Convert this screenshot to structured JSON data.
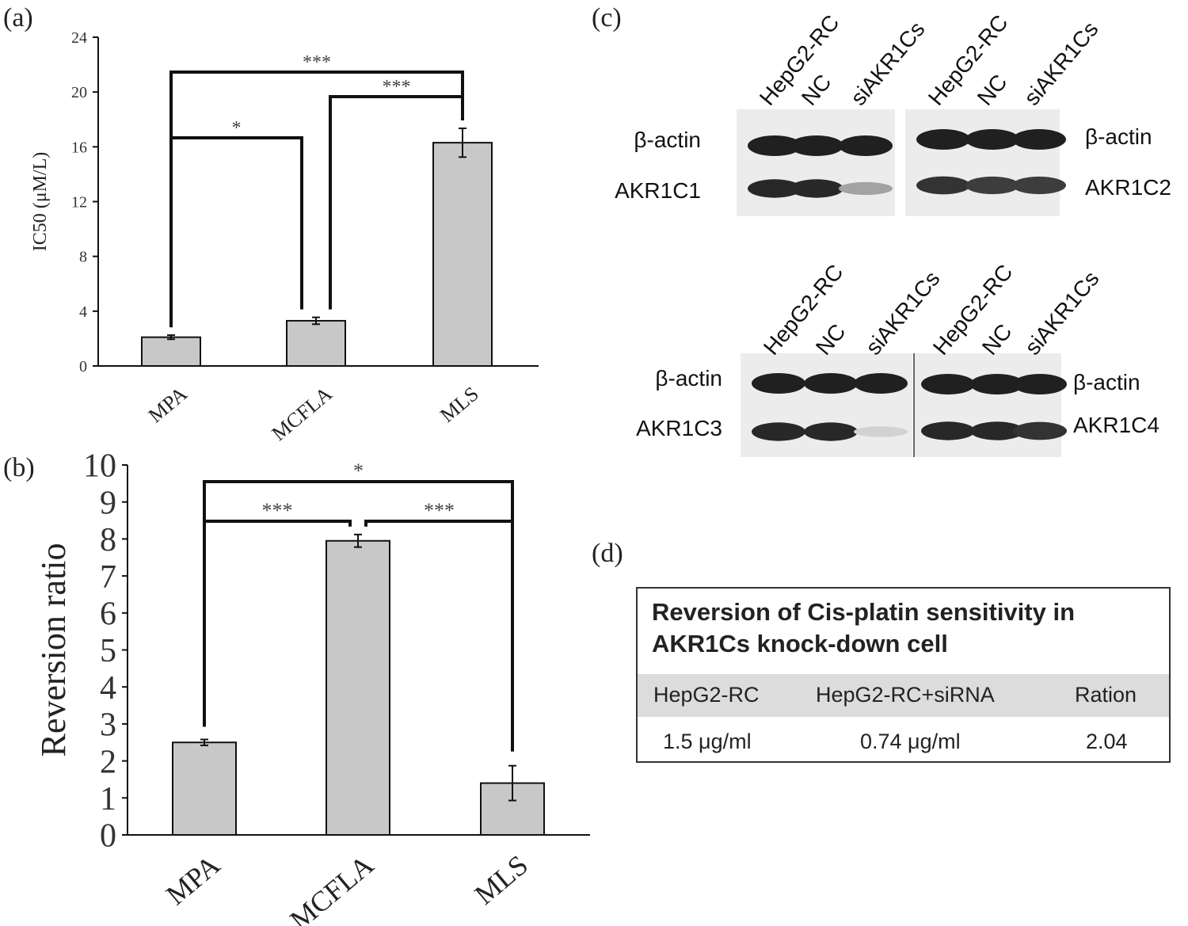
{
  "panel_labels": {
    "a": "(a)",
    "b": "(b)",
    "c": "(c)",
    "d": "(d)"
  },
  "chart_data": [
    {
      "type": "bar",
      "panel": "(a)",
      "categories": [
        "MPA",
        "MCFLA",
        "MLS"
      ],
      "values": [
        2.1,
        3.3,
        16.3
      ],
      "errors": [
        0.15,
        0.25,
        1.05
      ],
      "ylabel": "IC50 (μM/L)",
      "xlabel": "",
      "ylim": [
        0,
        24
      ],
      "yticks": [
        0,
        4,
        8,
        12,
        16,
        20,
        24
      ],
      "bar_color": "#c8c8c8",
      "significance": [
        {
          "from": "MPA",
          "to": "MCFLA",
          "label": "*"
        },
        {
          "from": "MCFLA",
          "to": "MLS",
          "label": "***"
        },
        {
          "from": "MPA",
          "to": "MLS",
          "label": "***"
        }
      ]
    },
    {
      "type": "bar",
      "panel": "(b)",
      "categories": [
        "MPA",
        "MCFLA",
        "MLS"
      ],
      "values": [
        2.5,
        7.95,
        1.4
      ],
      "errors": [
        0.08,
        0.17,
        0.47
      ],
      "ylabel": "Reversion ratio",
      "xlabel": "",
      "ylim": [
        0,
        10
      ],
      "yticks": [
        0,
        1,
        2,
        3,
        4,
        5,
        6,
        7,
        8,
        9,
        10
      ],
      "bar_color": "#c8c8c8",
      "significance": [
        {
          "from": "MPA",
          "to": "MCFLA",
          "label": "***"
        },
        {
          "from": "MCFLA",
          "to": "MLS",
          "label": "***"
        },
        {
          "from": "MPA",
          "to": "MLS",
          "label": "*"
        }
      ]
    }
  ],
  "western_blots": [
    {
      "lanes": [
        "HepG2-RC",
        "NC",
        "siAKR1Cs"
      ],
      "top_label": "β-actin",
      "bottom_label": "AKR1C1",
      "bottom_intensity": [
        0.95,
        0.95,
        0.35
      ]
    },
    {
      "lanes": [
        "HepG2-RC",
        "NC",
        "siAKR1Cs"
      ],
      "top_label": "β-actin",
      "bottom_label": "AKR1C2",
      "bottom_intensity": [
        0.9,
        0.85,
        0.85
      ]
    },
    {
      "lanes": [
        "HepG2-RC",
        "NC",
        "siAKR1Cs"
      ],
      "top_label": "β-actin",
      "bottom_label": "AKR1C3",
      "bottom_intensity": [
        0.95,
        0.95,
        0.12
      ]
    },
    {
      "lanes": [
        "HepG2-RC",
        "NC",
        "siAKR1Cs"
      ],
      "top_label": "β-actin",
      "bottom_label": "AKR1C4",
      "bottom_intensity": [
        0.95,
        0.95,
        0.9
      ]
    }
  ],
  "table": {
    "title": "Reversion of Cis-platin sensitivity in AKR1Cs knock-down cell",
    "headers": [
      "HepG2-RC",
      "HepG2-RC+siRNA",
      "Ration"
    ],
    "row": [
      "1.5 μg/ml",
      "0.74 μg/ml",
      "2.04"
    ]
  }
}
